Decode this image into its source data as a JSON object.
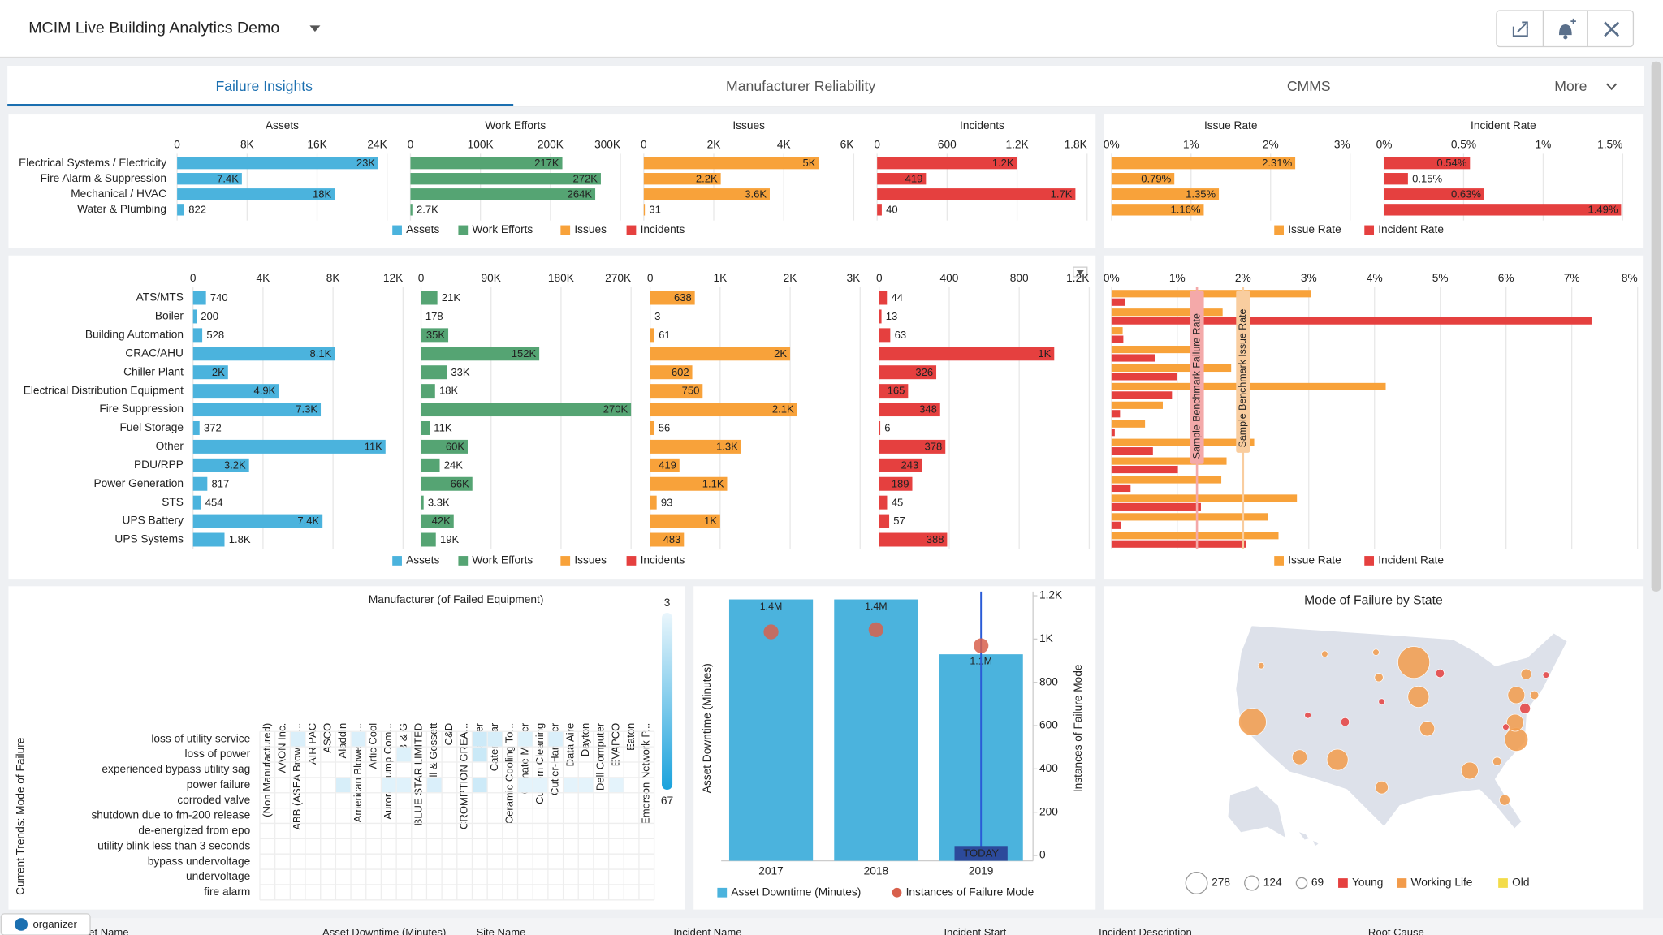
{
  "header": {
    "title": "MCIM Live Building Analytics Demo",
    "tabs": [
      "Failure Insights",
      "Manufacturer Reliability",
      "CMMS",
      "More"
    ]
  },
  "summary": {
    "categories": [
      "Electrical Systems / Electricity",
      "Fire Alarm & Suppression",
      "Mechanical / HVAC",
      "Water & Plumbing"
    ],
    "charts": [
      {
        "type": "bar",
        "name": "Assets",
        "color": "#4bb3dd",
        "xlim": [
          0,
          24000
        ],
        "xticks": [
          0,
          {
            "value": 8000,
            "label": "8K"
          },
          {
            "value": 16000,
            "label": "16K"
          },
          {
            "value": 24000,
            "label": "24K"
          }
        ],
        "values": [
          23000,
          7400,
          18000,
          822
        ],
        "value_labels": [
          "23K",
          "7.4K",
          "18K",
          "822"
        ]
      },
      {
        "type": "bar",
        "name": "Work Efforts",
        "color": "#55a473",
        "xlim": [
          0,
          300000
        ],
        "xticks": [
          0,
          {
            "value": 100000,
            "label": "100K"
          },
          {
            "value": 200000,
            "label": "200K"
          },
          {
            "value": 300000,
            "label": "300K"
          }
        ],
        "values": [
          217000,
          272000,
          264000,
          2700
        ],
        "value_labels": [
          "217K",
          "272K",
          "264K",
          "2.7K"
        ]
      },
      {
        "type": "bar",
        "name": "Issues",
        "color": "#f8a23a",
        "xlim": [
          0,
          6000
        ],
        "xticks": [
          0,
          {
            "value": 2000,
            "label": "2K"
          },
          {
            "value": 4000,
            "label": "4K"
          },
          {
            "value": 6000,
            "label": "6K"
          }
        ],
        "values": [
          5000,
          2200,
          3600,
          31
        ],
        "value_labels": [
          "5K",
          "2.2K",
          "3.6K",
          "31"
        ]
      },
      {
        "type": "bar",
        "name": "Incidents",
        "color": "#e5403f",
        "xlim": [
          0,
          1800
        ],
        "xticks": [
          0,
          600,
          {
            "value": 1200,
            "label": "1.2K"
          },
          {
            "value": 1800,
            "label": "1.8K"
          }
        ],
        "values": [
          1200,
          419,
          1700,
          40
        ],
        "value_labels": [
          "1.2K",
          "419",
          "1.7K",
          "40"
        ]
      }
    ],
    "rate_charts": [
      {
        "type": "bar",
        "name": "Issue Rate",
        "color": "#f8a23a",
        "xlim": [
          0,
          3
        ],
        "xticks": [
          {
            "value": 0,
            "label": "0%"
          },
          {
            "value": 1,
            "label": "1%"
          },
          {
            "value": 2,
            "label": "2%"
          },
          {
            "value": 3,
            "label": "3%"
          }
        ],
        "values": [
          2.31,
          0.79,
          1.35,
          1.16
        ],
        "value_labels": [
          "2.31%",
          "0.79%",
          "1.35%",
          "1.16%"
        ]
      },
      {
        "type": "bar",
        "name": "Incident Rate",
        "color": "#e5403f",
        "xlim": [
          0,
          1.5
        ],
        "xticks": [
          {
            "value": 0,
            "label": "0%"
          },
          {
            "value": 0.5,
            "label": "0.5%"
          },
          {
            "value": 1,
            "label": "1%"
          },
          {
            "value": 1.5,
            "label": "1.5%"
          }
        ],
        "values": [
          0.54,
          0.15,
          0.63,
          1.49
        ],
        "value_labels": [
          "0.54%",
          "0.15%",
          "0.63%",
          "1.49%"
        ]
      }
    ]
  },
  "detail": {
    "categories": [
      "ATS/MTS",
      "Boiler",
      "Building Automation",
      "CRAC/AHU",
      "Chiller Plant",
      "Electrical Distribution Equipment",
      "Fire Suppression",
      "Fuel Storage",
      "Other",
      "PDU/RPP",
      "Power Generation",
      "STS",
      "UPS Battery",
      "UPS Systems"
    ],
    "charts": [
      {
        "type": "bar",
        "name": "Assets",
        "color": "#4bb3dd",
        "xlim": [
          0,
          12000
        ],
        "xticks": [
          0,
          {
            "value": 4000,
            "label": "4K"
          },
          {
            "value": 8000,
            "label": "8K"
          },
          {
            "value": 12000,
            "label": "12K"
          }
        ],
        "values": [
          740,
          200,
          528,
          8100,
          2000,
          4900,
          7300,
          372,
          11000,
          3200,
          817,
          454,
          7400,
          1800
        ],
        "value_labels": [
          "740",
          "200",
          "528",
          "8.1K",
          "2K",
          "4.9K",
          "7.3K",
          "372",
          "11K",
          "3.2K",
          "817",
          "454",
          "7.4K",
          "1.8K"
        ]
      },
      {
        "type": "bar",
        "name": "Work Efforts",
        "color": "#55a473",
        "xlim": [
          0,
          270000
        ],
        "xticks": [
          0,
          {
            "value": 90000,
            "label": "90K"
          },
          {
            "value": 180000,
            "label": "180K"
          },
          {
            "value": 270000,
            "label": "270K"
          }
        ],
        "values": [
          21000,
          178,
          35000,
          152000,
          33000,
          18000,
          270000,
          11000,
          60000,
          24000,
          66000,
          3300,
          42000,
          19000
        ],
        "value_labels": [
          "21K",
          "178",
          "35K",
          "152K",
          "33K",
          "18K",
          "270K",
          "11K",
          "60K",
          "24K",
          "66K",
          "3.3K",
          "42K",
          "19K"
        ]
      },
      {
        "type": "bar",
        "name": "Issues",
        "color": "#f8a23a",
        "xlim": [
          0,
          3000
        ],
        "xticks": [
          0,
          {
            "value": 1000,
            "label": "1K"
          },
          {
            "value": 2000,
            "label": "2K"
          },
          {
            "value": 3000,
            "label": "3K"
          }
        ],
        "values": [
          638,
          3,
          61,
          2000,
          602,
          750,
          2100,
          56,
          1300,
          419,
          1100,
          93,
          1000,
          483
        ],
        "value_labels": [
          "638",
          "3",
          "61",
          "2K",
          "602",
          "750",
          "2.1K",
          "56",
          "1.3K",
          "419",
          "1.1K",
          "93",
          "1K",
          "483"
        ]
      },
      {
        "type": "bar",
        "name": "Incidents",
        "color": "#e5403f",
        "xlim": [
          0,
          1200
        ],
        "xticks": [
          0,
          400,
          800,
          {
            "value": 1200,
            "label": "1.2K"
          }
        ],
        "values": [
          44,
          13,
          63,
          1000,
          326,
          165,
          348,
          6,
          378,
          243,
          189,
          45,
          57,
          388
        ],
        "value_labels": [
          "44",
          "13",
          "63",
          "1K",
          "326",
          "165",
          "348",
          "6",
          "378",
          "243",
          "189",
          "45",
          "57",
          "388"
        ]
      }
    ],
    "rates": {
      "type": "bar",
      "xlim": [
        0,
        8
      ],
      "xticks": [
        {
          "value": 0,
          "label": "0%"
        },
        {
          "value": 1,
          "label": "1%"
        },
        {
          "value": 2,
          "label": "2%"
        },
        {
          "value": 3,
          "label": "3%"
        },
        {
          "value": 4,
          "label": "4%"
        },
        {
          "value": 5,
          "label": "5%"
        },
        {
          "value": 6,
          "label": "6%"
        },
        {
          "value": 7,
          "label": "7%"
        },
        {
          "value": 8,
          "label": "8%"
        }
      ],
      "series": [
        {
          "name": "Issue Rate",
          "color": "#f8a23a",
          "values": [
            3.04,
            1.69,
            0.17,
            1.32,
            1.82,
            4.17,
            0.78,
            0.51,
            2.17,
            1.75,
            1.67,
            2.82,
            2.38,
            2.54
          ]
        },
        {
          "name": "Incident Rate",
          "color": "#e5403f",
          "values": [
            0.21,
            7.3,
            0.18,
            0.66,
            0.99,
            0.92,
            0.13,
            0.05,
            0.63,
            1.01,
            0.29,
            1.36,
            0.14,
            2.04
          ]
        }
      ],
      "annotations": [
        {
          "label": "Sample Benchmark Failure Rate",
          "value": 1.3,
          "color": "#f4a9a9"
        },
        {
          "label": "Sample Benchmark Issue Rate",
          "value": 2.0,
          "color": "#f9cd9f"
        }
      ]
    }
  },
  "heatmap": {
    "type": "heatmap",
    "title": "Manufacturer (of Failed Equipment)",
    "ylabel": "Current Trends: Mode of Failure",
    "columns": [
      "(Non Manufactured)",
      "AAON Inc.",
      "ABB (ASEA Brown B...",
      "AIR PAC",
      "ASCO",
      "Aladdin",
      "American Blower C...",
      "Artic Cool",
      "Aurora Pump Com...",
      "B & G",
      "BLUE STAR LIMITED",
      "Bell & Gossett",
      "C&D",
      "CROMPTION GREA...",
      "Carrier",
      "Caterpillar",
      "Ceramic Cooling To...",
      "Climate Master",
      "Custom Cleaning",
      "Cutler-Hammer",
      "Data Aire",
      "Dayton",
      "Dell Computer",
      "EVAPCO",
      "Eaton",
      "Emerson Network P..."
    ],
    "rows": [
      "loss of utility service",
      "loss of power",
      "experienced bypass utility sag",
      "power failure",
      "corroded valve",
      "shutdown due to fm-200 release",
      "de-energized from epo",
      "utility blink less than 3 seconds",
      "bypass undervoltage",
      "undervoltage",
      "fire alarm"
    ],
    "scale": [
      3,
      67
    ],
    "colors": [
      "#eaf6fc",
      "#1aa2dc"
    ],
    "values": [
      [
        null,
        null,
        8,
        null,
        null,
        null,
        8,
        null,
        null,
        null,
        null,
        null,
        null,
        null,
        12,
        9,
        null,
        7,
        null,
        8,
        null,
        null,
        null,
        null,
        null,
        null
      ],
      [
        null,
        null,
        null,
        null,
        null,
        null,
        null,
        null,
        null,
        7,
        null,
        null,
        null,
        null,
        13,
        null,
        null,
        null,
        null,
        null,
        null,
        null,
        null,
        null,
        null,
        null
      ],
      [
        null,
        null,
        null,
        null,
        null,
        null,
        null,
        null,
        null,
        null,
        null,
        null,
        null,
        null,
        null,
        null,
        null,
        null,
        null,
        null,
        null,
        null,
        null,
        null,
        null,
        null
      ],
      [
        null,
        null,
        null,
        null,
        null,
        9,
        null,
        null,
        6,
        6,
        null,
        8,
        null,
        null,
        12,
        null,
        null,
        5,
        5,
        null,
        5,
        5,
        null,
        5,
        null,
        null
      ],
      [
        null,
        null,
        null,
        null,
        null,
        null,
        null,
        null,
        null,
        null,
        null,
        null,
        null,
        null,
        null,
        null,
        null,
        null,
        null,
        null,
        null,
        null,
        null,
        null,
        null,
        null
      ],
      [
        null,
        null,
        null,
        null,
        null,
        null,
        null,
        null,
        null,
        null,
        null,
        null,
        null,
        null,
        null,
        null,
        null,
        null,
        null,
        null,
        null,
        null,
        null,
        null,
        null,
        null
      ],
      [
        null,
        null,
        null,
        null,
        null,
        null,
        null,
        null,
        null,
        null,
        null,
        null,
        null,
        null,
        null,
        null,
        null,
        null,
        null,
        null,
        null,
        null,
        null,
        null,
        null,
        null
      ],
      [
        null,
        null,
        null,
        null,
        null,
        null,
        null,
        null,
        null,
        null,
        null,
        null,
        null,
        null,
        null,
        null,
        null,
        null,
        null,
        null,
        null,
        null,
        null,
        null,
        null,
        null
      ],
      [
        null,
        null,
        null,
        null,
        null,
        null,
        null,
        null,
        null,
        null,
        null,
        null,
        null,
        null,
        null,
        null,
        null,
        null,
        null,
        null,
        null,
        null,
        null,
        null,
        null,
        null
      ],
      [
        null,
        null,
        null,
        null,
        null,
        null,
        null,
        null,
        null,
        null,
        null,
        null,
        null,
        null,
        null,
        null,
        null,
        null,
        null,
        null,
        null,
        null,
        null,
        null,
        null,
        null
      ],
      [
        null,
        null,
        null,
        null,
        null,
        null,
        null,
        null,
        null,
        null,
        null,
        null,
        null,
        null,
        null,
        null,
        null,
        null,
        null,
        null,
        null,
        null,
        null,
        null,
        null,
        null
      ]
    ]
  },
  "downtime": {
    "type": "bar",
    "categories": [
      "2017",
      "2018",
      "2019"
    ],
    "ylabel": "Asset Downtime (Minutes)",
    "y2label": "Instances of Failure Mode",
    "ylim": [
      0,
      1420000
    ],
    "y2lim": [
      0,
      1200
    ],
    "y2ticks": [
      0,
      200,
      400,
      600,
      800,
      {
        "value": 1000,
        "label": "1K"
      },
      {
        "value": 1200,
        "label": "1.2K"
      }
    ],
    "series": [
      {
        "name": "Asset Downtime (Minutes)",
        "color": "#4bb3dd",
        "values": [
          1400000,
          1400000,
          1100000
        ],
        "value_labels": [
          "1.4M",
          "1.4M",
          "1.1M"
        ]
      },
      {
        "name": "Instances of Failure Mode",
        "color": "#d8604c",
        "axis": "y2",
        "values": [
          1033,
          1043,
          969
        ]
      }
    ],
    "today": {
      "label": "TODAY",
      "category": "2019"
    }
  },
  "map": {
    "type": "bubble-map",
    "title": "Mode of Failure by State",
    "size_legend": [
      278,
      124,
      69
    ],
    "groups": [
      {
        "name": "Young",
        "color": "#e5403f"
      },
      {
        "name": "Working Life",
        "color": "#f29b4b"
      },
      {
        "name": "Old",
        "color": "#f3dc4a"
      }
    ],
    "bubbles": [
      {
        "lon": -121.1,
        "lat": 37.5,
        "size": 326,
        "group": "Working Life"
      },
      {
        "lon": -113.0,
        "lat": 33.3,
        "size": 95,
        "group": "Working Life"
      },
      {
        "lon": -106.5,
        "lat": 33.0,
        "size": 193,
        "group": "Working Life"
      },
      {
        "lon": -119.6,
        "lat": 44.2,
        "size": 17,
        "group": "Working Life"
      },
      {
        "lon": -111.6,
        "lat": 38.3,
        "size": 17,
        "group": "Young"
      },
      {
        "lon": -108.7,
        "lat": 45.6,
        "size": 17,
        "group": "Working Life"
      },
      {
        "lon": -99.4,
        "lat": 42.8,
        "size": 31,
        "group": "Working Life"
      },
      {
        "lon": -93.4,
        "lat": 44.6,
        "size": 434,
        "group": "Working Life"
      },
      {
        "lon": -88.9,
        "lat": 43.3,
        "size": 31,
        "group": "Young"
      },
      {
        "lon": -92.6,
        "lat": 40.5,
        "size": 193,
        "group": "Working Life"
      },
      {
        "lon": -91.1,
        "lat": 36.7,
        "size": 95,
        "group": "Working Life"
      },
      {
        "lon": -98.9,
        "lat": 39.9,
        "size": 17,
        "group": "Young"
      },
      {
        "lon": -105.2,
        "lat": 37.5,
        "size": 31,
        "group": "Young"
      },
      {
        "lon": -98.9,
        "lat": 29.7,
        "size": 70,
        "group": "Working Life"
      },
      {
        "lon": -83.8,
        "lat": 31.7,
        "size": 124,
        "group": "Working Life"
      },
      {
        "lon": -77.8,
        "lat": 28.2,
        "size": 48,
        "group": "Working Life"
      },
      {
        "lon": -79.1,
        "lat": 32.8,
        "size": 31,
        "group": "Working Life"
      },
      {
        "lon": -75.8,
        "lat": 35.4,
        "size": 234,
        "group": "Working Life"
      },
      {
        "lon": -76.0,
        "lat": 37.4,
        "size": 124,
        "group": "Working Life"
      },
      {
        "lon": -75.8,
        "lat": 40.7,
        "size": 124,
        "group": "Working Life"
      },
      {
        "lon": -74.3,
        "lat": 39.1,
        "size": 48,
        "group": "Young"
      },
      {
        "lon": -72.7,
        "lat": 40.7,
        "size": 31,
        "group": "Working Life"
      },
      {
        "lon": -74.1,
        "lat": 43.2,
        "size": 48,
        "group": "Working Life"
      },
      {
        "lon": -70.7,
        "lat": 43.1,
        "size": 17,
        "group": "Young"
      },
      {
        "lon": -77.6,
        "lat": 36.9,
        "size": 17,
        "group": "Young"
      },
      {
        "lon": -99.9,
        "lat": 45.8,
        "size": 17,
        "group": "Working Life"
      }
    ]
  },
  "table": {
    "columns": [
      "Asset Name",
      "Asset Downtime (Minutes)",
      "Site Name",
      "Incident Name",
      "Incident Start",
      "Incident Description",
      "Root Cause"
    ]
  },
  "badge": "organizer"
}
